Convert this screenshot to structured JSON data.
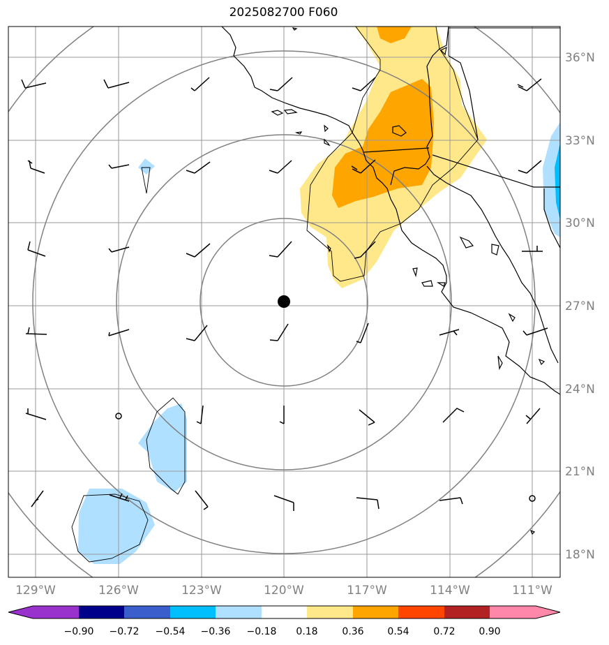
{
  "title": "2025082700 F060",
  "map": {
    "lat_labels": [
      "36°N",
      "33°N",
      "30°N",
      "27°N",
      "24°N",
      "21°N",
      "18°N"
    ],
    "lon_labels": [
      "129°W",
      "126°W",
      "123°W",
      "120°W",
      "117°W",
      "114°W",
      "111°W"
    ],
    "lat_values": [
      36,
      33,
      30,
      27,
      24,
      21,
      18
    ],
    "lon_values": [
      -129,
      -126,
      -123,
      -120,
      -117,
      -114,
      -111
    ],
    "center": {
      "lat": 27,
      "lon": -120
    },
    "gridline_color": "#999999",
    "range_ring_color": "#808080"
  },
  "colorbar": {
    "ticks": [
      "−0.90",
      "−0.72",
      "−0.54",
      "−0.36",
      "−0.18",
      "0.18",
      "0.36",
      "0.54",
      "0.72",
      "0.90"
    ],
    "colors": [
      "#9932cc",
      "#00008b",
      "#3a5fcd",
      "#00bfff",
      "#b0e0ff",
      "#ffffff",
      "#ffe88a",
      "#ffa500",
      "#ff4500",
      "#b22222",
      "#ff88aa"
    ]
  }
}
